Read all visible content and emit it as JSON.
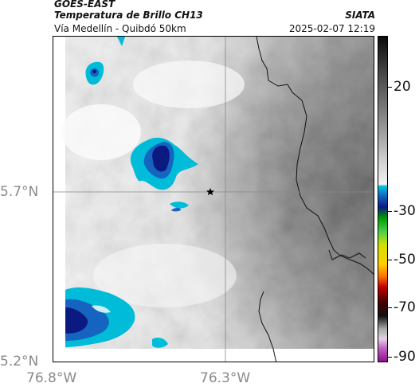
{
  "header": {
    "satellite": "GOES-EAST",
    "product": "Temperatura de Brillo CH13",
    "region": "Vía Medellín - Quibdó 50km",
    "organization": "SIATA",
    "timestamp": "2025-02-07 12:19"
  },
  "map": {
    "lat_labels": [
      "5.7°N",
      "5.2°N"
    ],
    "lon_labels": [
      "76.8°W",
      "76.3°W"
    ],
    "marker": "star-marker",
    "colors": {
      "cloud_cold": "#00bcd8",
      "cloud_colder": "#1565c0",
      "cloud_coldest": "#0a1a80",
      "border": "#111111"
    }
  },
  "colorbar": {
    "ticks": [
      "20",
      "-30",
      "-50",
      "-70",
      "-90"
    ]
  }
}
